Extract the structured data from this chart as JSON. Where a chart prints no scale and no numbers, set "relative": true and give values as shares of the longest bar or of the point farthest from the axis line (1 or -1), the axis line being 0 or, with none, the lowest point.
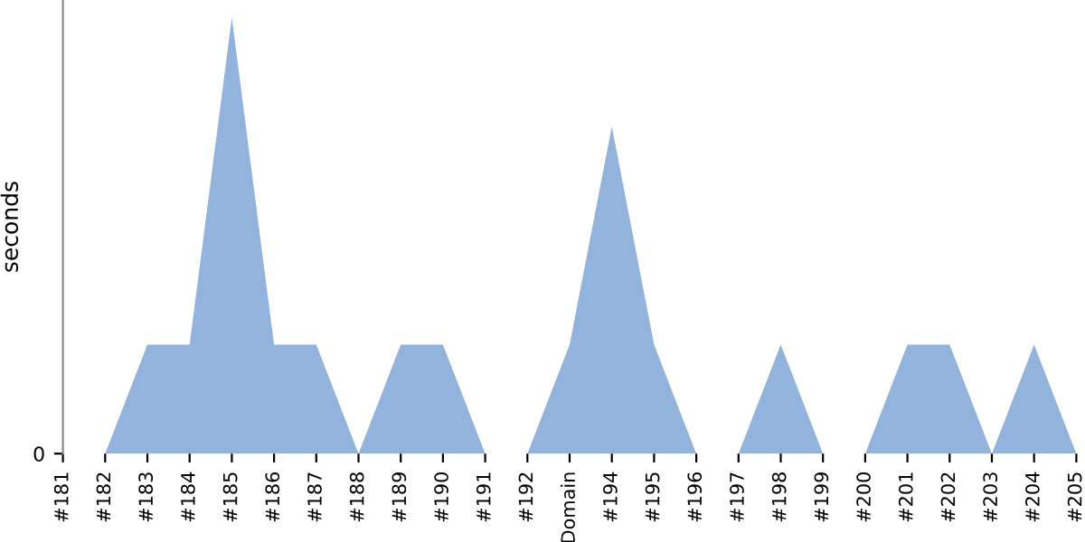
{
  "chart_data": {
    "type": "area",
    "ylabel": "seconds",
    "relative": true,
    "annotations": [
      "0"
    ],
    "categories": [
      "#181",
      "#182",
      "#183",
      "#184",
      "#185",
      "#186",
      "#187",
      "#188",
      "#189",
      "#190",
      "#191",
      "#192",
      "Domain",
      "#194",
      "#195",
      "#196",
      "#197",
      "#198",
      "#199",
      "#200",
      "#201",
      "#202",
      "#203",
      "#204",
      "#205"
    ],
    "series": [
      {
        "color": "#92b4dc",
        "values": [
          0,
          0,
          0.25,
          0.25,
          1,
          0.25,
          0.25,
          0,
          0.25,
          0.25,
          0,
          0,
          0.25,
          0.75,
          0.25,
          0,
          0,
          0.25,
          0,
          0,
          0.25,
          0.25,
          0,
          0.25,
          0
        ]
      }
    ]
  }
}
